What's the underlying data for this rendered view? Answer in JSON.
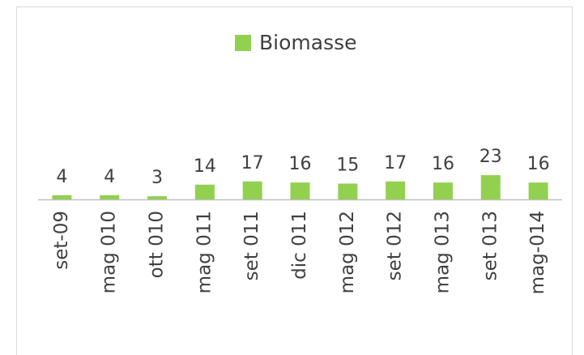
{
  "chart_data": {
    "type": "bar",
    "legend": "Biomasse",
    "categories": [
      "set-09",
      "mag 010",
      "ott 010",
      "mag 011",
      "set 011",
      "dic 011",
      "mag 012",
      "set 012",
      "mag 013",
      "set 013",
      "mag-014"
    ],
    "series": [
      {
        "name": "Biomasse",
        "color": "#92d050",
        "values": [
          4,
          4,
          3,
          14,
          17,
          16,
          15,
          17,
          16,
          23,
          16
        ]
      }
    ],
    "legend_position": "top"
  }
}
